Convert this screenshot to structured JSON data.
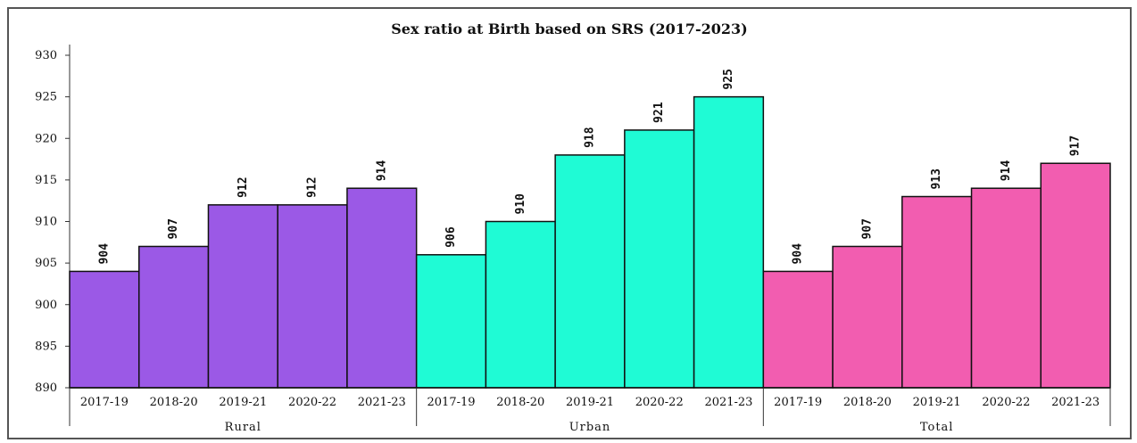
{
  "chart_data": {
    "type": "bar",
    "title": "Sex ratio at Birth based on SRS (2017-2023)",
    "ylim": [
      890,
      930
    ],
    "yticks": [
      890,
      895,
      900,
      905,
      910,
      915,
      920,
      925,
      930
    ],
    "grid": false,
    "legend": "none",
    "periods": [
      "2017-19",
      "2018-20",
      "2019-21",
      "2020-22",
      "2021-23"
    ],
    "groups": [
      {
        "name": "Rural",
        "color": "#9b59e6",
        "values": [
          904,
          907,
          912,
          912,
          914
        ]
      },
      {
        "name": "Urban",
        "color": "#1ffbd5",
        "values": [
          906,
          910,
          918,
          921,
          925
        ]
      },
      {
        "name": "Total",
        "color": "#f25db0",
        "values": [
          904,
          907,
          913,
          914,
          917
        ]
      }
    ]
  }
}
